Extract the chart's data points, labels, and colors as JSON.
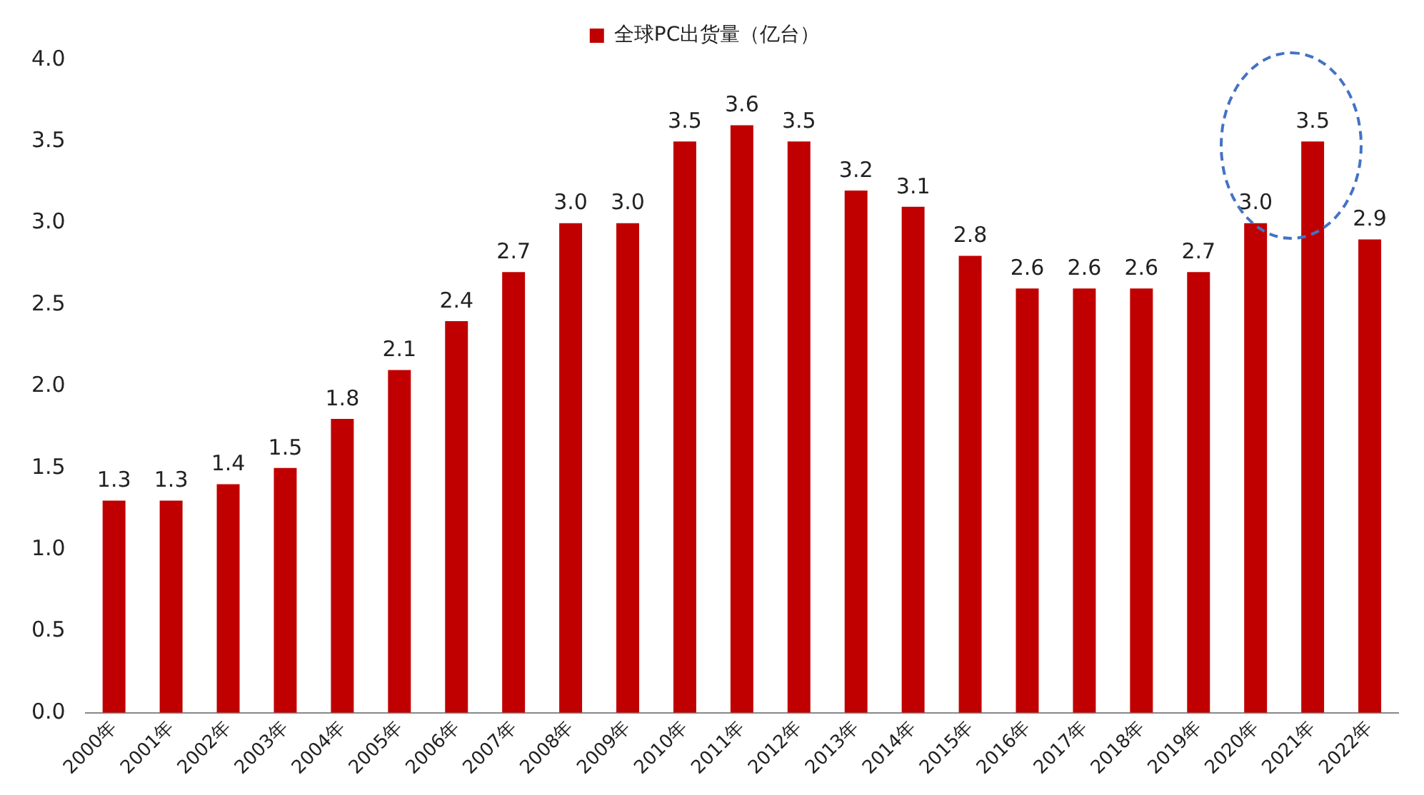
{
  "chart_data": {
    "type": "bar",
    "categories": [
      "2000年",
      "2001年",
      "2002年",
      "2003年",
      "2004年",
      "2005年",
      "2006年",
      "2007年",
      "2008年",
      "2009年",
      "2010年",
      "2011年",
      "2012年",
      "2013年",
      "2014年",
      "2015年",
      "2016年",
      "2017年",
      "2018年",
      "2019年",
      "2020年",
      "2021年",
      "2022年"
    ],
    "series": [
      {
        "name": "全球PC出货量（亿台）",
        "color": "#c00000",
        "values": [
          1.3,
          1.3,
          1.4,
          1.5,
          1.8,
          2.1,
          2.4,
          2.7,
          3.0,
          3.0,
          3.5,
          3.6,
          3.5,
          3.2,
          3.1,
          2.8,
          2.6,
          2.6,
          2.6,
          2.7,
          3.0,
          3.5,
          2.9
        ],
        "value_labels": [
          "1.3",
          "1.3",
          "1.4",
          "1.5",
          "1.8",
          "2.1",
          "2.4",
          "2.7",
          "3.0",
          "3.0",
          "3.5",
          "3.6",
          "3.5",
          "3.2",
          "3.1",
          "2.8",
          "2.6",
          "2.6",
          "2.6",
          "2.7",
          "3.0",
          "3.5",
          "2.9"
        ]
      }
    ],
    "ylim": [
      0,
      4
    ],
    "yticks": [
      {
        "value": 0,
        "label": "0.0"
      },
      {
        "value": 0.5,
        "label": "0.5"
      },
      {
        "value": 1,
        "label": "1.0"
      },
      {
        "value": 1.5,
        "label": "1.5"
      },
      {
        "value": 2,
        "label": "2.0"
      },
      {
        "value": 2.5,
        "label": "2.5"
      },
      {
        "value": 3,
        "label": "3.0"
      },
      {
        "value": 3.5,
        "label": "3.5"
      },
      {
        "value": 4,
        "label": "4.0"
      }
    ],
    "grid": false,
    "legend": "top"
  }
}
